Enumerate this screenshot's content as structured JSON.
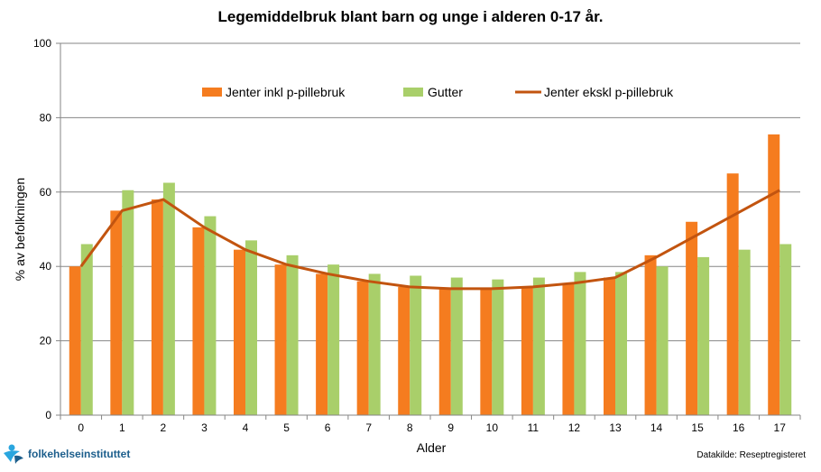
{
  "chart_data": {
    "type": "bar",
    "title": "Legemiddelbruk blant barn og unge i alderen 0-17 år.",
    "xlabel": "Alder",
    "ylabel": "% av befolkningen",
    "ylim": [
      0,
      100
    ],
    "yticks": [
      0,
      20,
      40,
      60,
      80,
      100
    ],
    "grid": true,
    "legend_position": "top-center",
    "categories": [
      "0",
      "1",
      "2",
      "3",
      "4",
      "5",
      "6",
      "7",
      "8",
      "9",
      "10",
      "11",
      "12",
      "13",
      "14",
      "15",
      "16",
      "17"
    ],
    "series": [
      {
        "name": "Jenter inkl p-pillebruk",
        "type": "bar",
        "color": "#f57c1f",
        "values": [
          40,
          55,
          58,
          50.5,
          44.5,
          40.5,
          38,
          36,
          34.5,
          34,
          34,
          34.5,
          35.5,
          37,
          43,
          52,
          65,
          75.5
        ]
      },
      {
        "name": "Gutter",
        "type": "bar",
        "color": "#a9cf6a",
        "values": [
          46,
          60.5,
          62.5,
          53.5,
          47,
          43,
          40.5,
          38,
          37.5,
          37,
          36.5,
          37,
          38.5,
          38.5,
          40,
          42.5,
          44.5,
          46
        ]
      },
      {
        "name": "Jenter ekskl p-pillebruk",
        "type": "line",
        "color": "#c2540f",
        "values": [
          40,
          55,
          58,
          50.5,
          44.5,
          40.5,
          38,
          36,
          34.5,
          34,
          34,
          34.5,
          35.5,
          37,
          42.5,
          48.5,
          54.5,
          60.5
        ]
      }
    ]
  },
  "footer": {
    "logo": "folkehelseinstituttet",
    "source": "Datakilde: Reseptregisteret"
  }
}
